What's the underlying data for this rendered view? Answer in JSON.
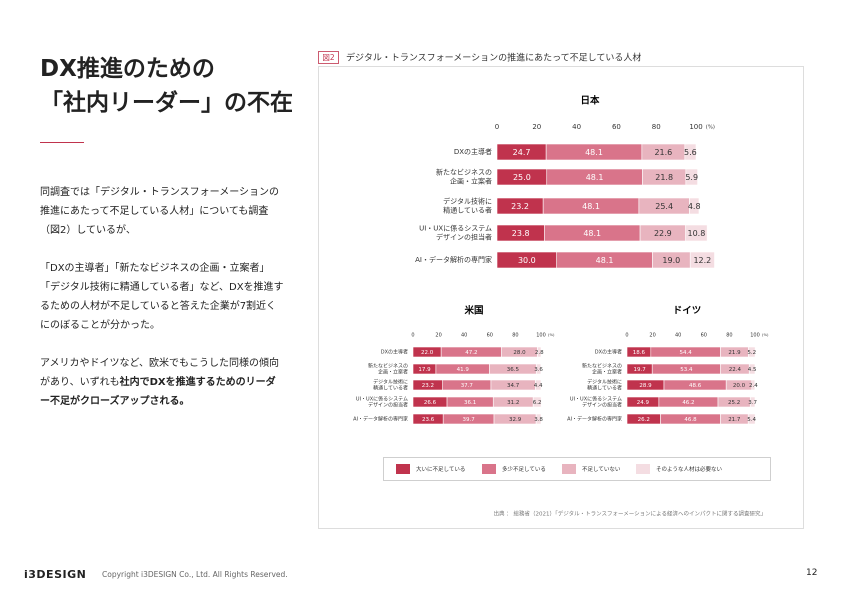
{
  "title": [
    "DX推進のための",
    "「社内リーダー」の不在"
  ],
  "body": [
    [
      {
        "text": "同調査では「デジタル・トランスフォーメーションの推進にあたって不足している人材」についても調査（図2）しているが、"
      }
    ],
    [
      {
        "text": "「DXの主導者」「新たなビジネスの企画・立案者」「デジタル技術に精通している者」など、DXを推進するための人材が不足していると答えた企業が7割近くにのぼることが分かった。"
      }
    ],
    [
      {
        "text": "アメリカやドイツなど、欧米でもこうした同様の傾向があり、いずれも"
      },
      {
        "text": "社内でDXを推進するためのリーダー不足がクローズアップされる。",
        "bold": true
      }
    ]
  ],
  "figure": {
    "label": "図2",
    "title": "デジタル・トランスフォーメーションの推進にあたって不足している人材",
    "legend": [
      {
        "name": "大いに不足している",
        "color": "#c0334d"
      },
      {
        "name": "多少不足している",
        "color": "#d9748a"
      },
      {
        "name": "不足していない",
        "color": "#e8b4bf"
      },
      {
        "name": "そのような人材は必要ない",
        "color": "#f4dde2"
      }
    ],
    "source": "出典 ： 総務省（2021）「デジタル・トランスフォーメーションによる経済へのインパクトに関する調査研究」"
  },
  "chart_data": [
    {
      "type": "stacked_bar",
      "title": "日本",
      "x_unit": "(%)",
      "xlim": [
        0,
        100
      ],
      "xticks": [
        0,
        20,
        40,
        60,
        80,
        100
      ],
      "categories": [
        [
          "DXの主導者"
        ],
        [
          "新たなビジネスの",
          "企画・立案者"
        ],
        [
          "デジタル技術に",
          "精通している者"
        ],
        [
          "UI・UXに係るシステム",
          "デザインの担当者"
        ],
        [
          "AI・データ解析の専門家"
        ]
      ],
      "series": [
        {
          "values": [
            24.7,
            25.0,
            23.2,
            23.8,
            30.0
          ],
          "value_labels": [
            "24.7",
            "25.0",
            "23.2",
            "23.8",
            "30.0"
          ]
        },
        {
          "values": [
            48.1,
            48.1,
            48.1,
            48.1,
            48.1
          ],
          "value_labels": [
            "48.1",
            "48.1",
            "48.1",
            "48.1",
            "48.1"
          ]
        },
        {
          "values": [
            21.6,
            21.8,
            25.4,
            22.9,
            19.0
          ],
          "value_labels": [
            "21.6",
            "21.8",
            "25.4",
            "22.9",
            "19.0"
          ]
        },
        {
          "values": [
            5.6,
            5.9,
            4.8,
            10.8,
            12.2
          ],
          "value_labels": [
            "5.6",
            "5.9",
            "4.8",
            "10.8",
            "12.2"
          ]
        }
      ]
    },
    {
      "type": "stacked_bar",
      "title": "米国",
      "x_unit": "(%)",
      "xlim": [
        0,
        100
      ],
      "xticks": [
        0,
        20,
        40,
        60,
        80,
        100
      ],
      "categories": [
        [
          "DXの主導者"
        ],
        [
          "新たなビジネスの",
          "企画・立案者"
        ],
        [
          "デジタル技術に",
          "精通している者"
        ],
        [
          "UI・UXに係るシステム",
          "デザインの担当者"
        ],
        [
          "AI・データ解析の専門家"
        ]
      ],
      "series": [
        {
          "values": [
            22.0,
            17.9,
            23.2,
            26.6,
            23.6
          ],
          "value_labels": [
            "22.0",
            "17.9",
            "23.2",
            "26.6",
            "23.6"
          ]
        },
        {
          "values": [
            47.2,
            41.9,
            37.7,
            36.1,
            39.7
          ],
          "value_labels": [
            "47.2",
            "41.9",
            "37.7",
            "36.1",
            "39.7"
          ]
        },
        {
          "values": [
            28.0,
            36.5,
            34.7,
            31.2,
            32.9
          ],
          "value_labels": [
            "28.0",
            "36.5",
            "34.7",
            "31.2",
            "32.9"
          ]
        },
        {
          "values": [
            2.8,
            3.6,
            4.4,
            6.2,
            3.8
          ],
          "value_labels": [
            "2.8",
            "3.6",
            "4.4",
            "6.2",
            "3.8"
          ]
        }
      ]
    },
    {
      "type": "stacked_bar",
      "title": "ドイツ",
      "x_unit": "(%)",
      "xlim": [
        0,
        100
      ],
      "xticks": [
        0,
        20,
        40,
        60,
        80,
        100
      ],
      "categories": [
        [
          "DXの主導者"
        ],
        [
          "新たなビジネスの",
          "企画・立案者"
        ],
        [
          "デジタル技術に",
          "精通している者"
        ],
        [
          "UI・UXに係るシステム",
          "デザインの担当者"
        ],
        [
          "AI・データ解析の専門家"
        ]
      ],
      "series": [
        {
          "values": [
            18.6,
            19.7,
            28.9,
            24.9,
            26.2
          ],
          "value_labels": [
            "18.6",
            "19.7",
            "28.9",
            "24.9",
            "26.2"
          ]
        },
        {
          "values": [
            54.4,
            53.4,
            48.6,
            46.2,
            46.8
          ],
          "value_labels": [
            "54.4",
            "53.4",
            "48.6",
            "46.2",
            "46.8"
          ]
        },
        {
          "values": [
            21.9,
            22.4,
            20.0,
            25.2,
            21.7
          ],
          "value_labels": [
            "21.9",
            "22.4",
            "20.0",
            "25.2",
            "21.7"
          ]
        },
        {
          "values": [
            5.2,
            4.5,
            2.4,
            3.7,
            5.4
          ],
          "value_labels": [
            "5.2",
            "4.5",
            "2.4",
            "3.7",
            "5.4"
          ]
        }
      ]
    }
  ],
  "footer": {
    "logo": "i3DESIGN",
    "copyright": "Copyright i3DESIGN Co., Ltd. All Rights Reserved.",
    "page": "12"
  }
}
